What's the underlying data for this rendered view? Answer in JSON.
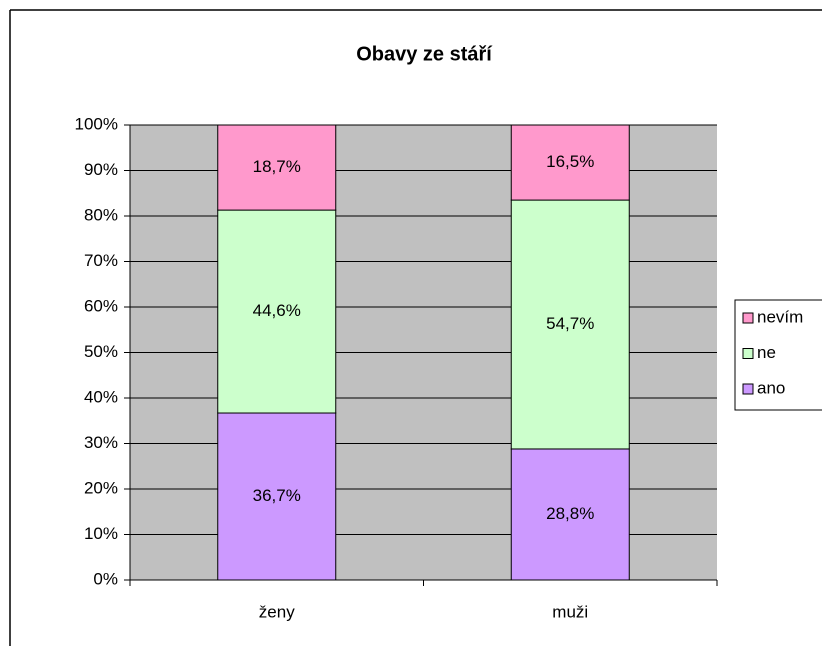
{
  "chart_data": {
    "type": "bar",
    "stacked": true,
    "title": "Obavy ze stáří",
    "categories": [
      "ženy",
      "muži"
    ],
    "series": [
      {
        "name": "ano",
        "color": "#cc99ff",
        "values": [
          36.7,
          28.8
        ],
        "value_labels": [
          "36,7%",
          "28,8%"
        ]
      },
      {
        "name": "ne",
        "color": "#ccffcc",
        "values": [
          44.6,
          54.7
        ],
        "value_labels": [
          "44,6%",
          "54,7%"
        ]
      },
      {
        "name": "nevím",
        "color": "#ff99cc",
        "values": [
          18.7,
          16.5
        ],
        "value_labels": [
          "18,7%",
          "16,5%"
        ]
      }
    ],
    "ylim": [
      0,
      100
    ],
    "yticks": [
      {
        "value": 0,
        "label": "0%"
      },
      {
        "value": 10,
        "label": "10%"
      },
      {
        "value": 20,
        "label": "20%"
      },
      {
        "value": 30,
        "label": "30%"
      },
      {
        "value": 40,
        "label": "40%"
      },
      {
        "value": 50,
        "label": "50%"
      },
      {
        "value": 60,
        "label": "60%"
      },
      {
        "value": 70,
        "label": "70%"
      },
      {
        "value": 80,
        "label": "80%"
      },
      {
        "value": 90,
        "label": "90%"
      },
      {
        "value": 100,
        "label": "100%"
      }
    ],
    "grid": true,
    "plot_background": "#c0c0c0",
    "legend": "right"
  }
}
